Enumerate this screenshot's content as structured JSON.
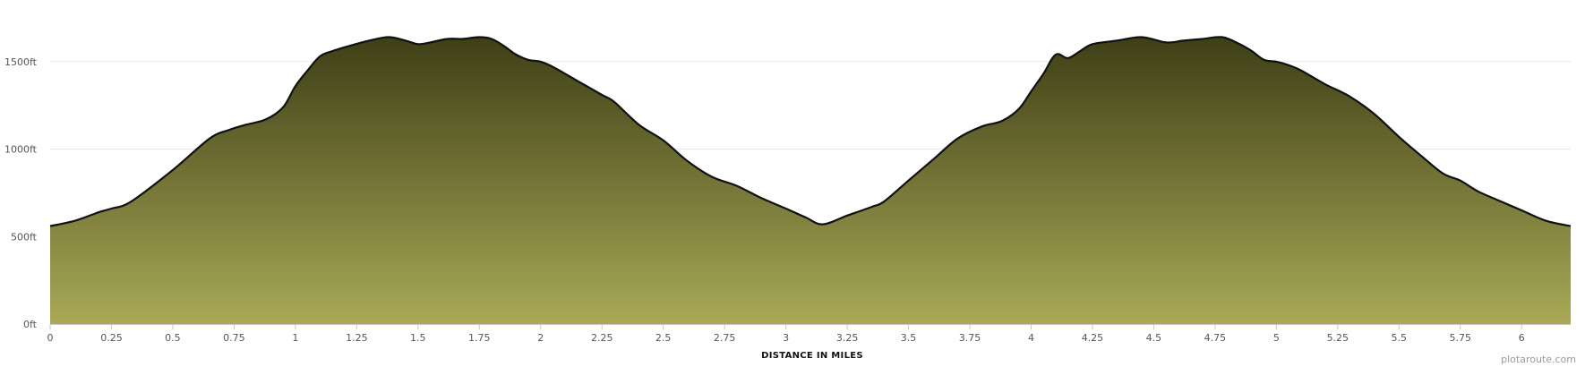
{
  "chart_data": {
    "type": "area",
    "title": "",
    "xlabel": "DISTANCE IN MILES",
    "ylabel": "",
    "xlim": [
      0,
      6.2
    ],
    "ylim": [
      0,
      1750
    ],
    "y_unit_suffix": "ft",
    "grid": true,
    "legend": "none",
    "xticks": [
      "0",
      "0.25",
      "0.5",
      "0.75",
      "1",
      "1.25",
      "1.5",
      "1.75",
      "2",
      "2.25",
      "2.5",
      "2.75",
      "3",
      "3.25",
      "3.5",
      "3.75",
      "4",
      "4.25",
      "4.5",
      "4.75",
      "5",
      "5.25",
      "5.5",
      "5.75",
      "6"
    ],
    "yticks": [
      "0ft",
      "500ft",
      "1000ft",
      "1500ft"
    ],
    "series": [
      {
        "x": [
          0,
          0.1,
          0.2,
          0.25,
          0.33,
          0.5,
          0.65,
          0.73,
          0.8,
          0.88,
          0.95,
          1.0,
          1.05,
          1.1,
          1.15,
          1.22,
          1.3,
          1.38,
          1.45,
          1.5,
          1.55,
          1.62,
          1.68,
          1.75,
          1.8,
          1.85,
          1.9,
          1.95,
          2.0,
          2.05,
          2.15,
          2.25,
          2.3,
          2.4,
          2.5,
          2.6,
          2.7,
          2.8,
          2.9,
          3.0,
          3.08,
          3.15,
          3.25,
          3.35,
          3.4,
          3.5,
          3.6,
          3.7,
          3.8,
          3.88,
          3.95,
          4.0,
          4.05,
          4.1,
          4.15,
          4.2,
          4.25,
          4.35,
          4.45,
          4.55,
          4.62,
          4.7,
          4.78,
          4.85,
          4.9,
          4.95,
          5.0,
          5.05,
          5.1,
          5.2,
          5.3,
          5.4,
          5.5,
          5.6,
          5.68,
          5.75,
          5.82,
          5.9,
          6.0,
          6.1,
          6.2
        ],
        "y": [
          560,
          590,
          640,
          660,
          700,
          880,
          1060,
          1110,
          1140,
          1170,
          1240,
          1360,
          1450,
          1530,
          1560,
          1590,
          1620,
          1640,
          1620,
          1600,
          1610,
          1630,
          1630,
          1640,
          1630,
          1590,
          1540,
          1510,
          1500,
          1470,
          1390,
          1310,
          1270,
          1140,
          1050,
          930,
          840,
          790,
          720,
          660,
          610,
          570,
          620,
          670,
          700,
          820,
          940,
          1060,
          1130,
          1160,
          1230,
          1330,
          1430,
          1540,
          1520,
          1560,
          1600,
          1620,
          1640,
          1610,
          1620,
          1630,
          1640,
          1600,
          1560,
          1510,
          1500,
          1480,
          1450,
          1370,
          1300,
          1200,
          1070,
          950,
          860,
          820,
          760,
          710,
          650,
          590,
          560
        ]
      }
    ],
    "colors": {
      "fill_top": "#3e3f16",
      "fill_bottom": "#a9a957",
      "line": "#111111",
      "grid": "#e6e6e6"
    }
  },
  "credit": "plotaroute.com"
}
